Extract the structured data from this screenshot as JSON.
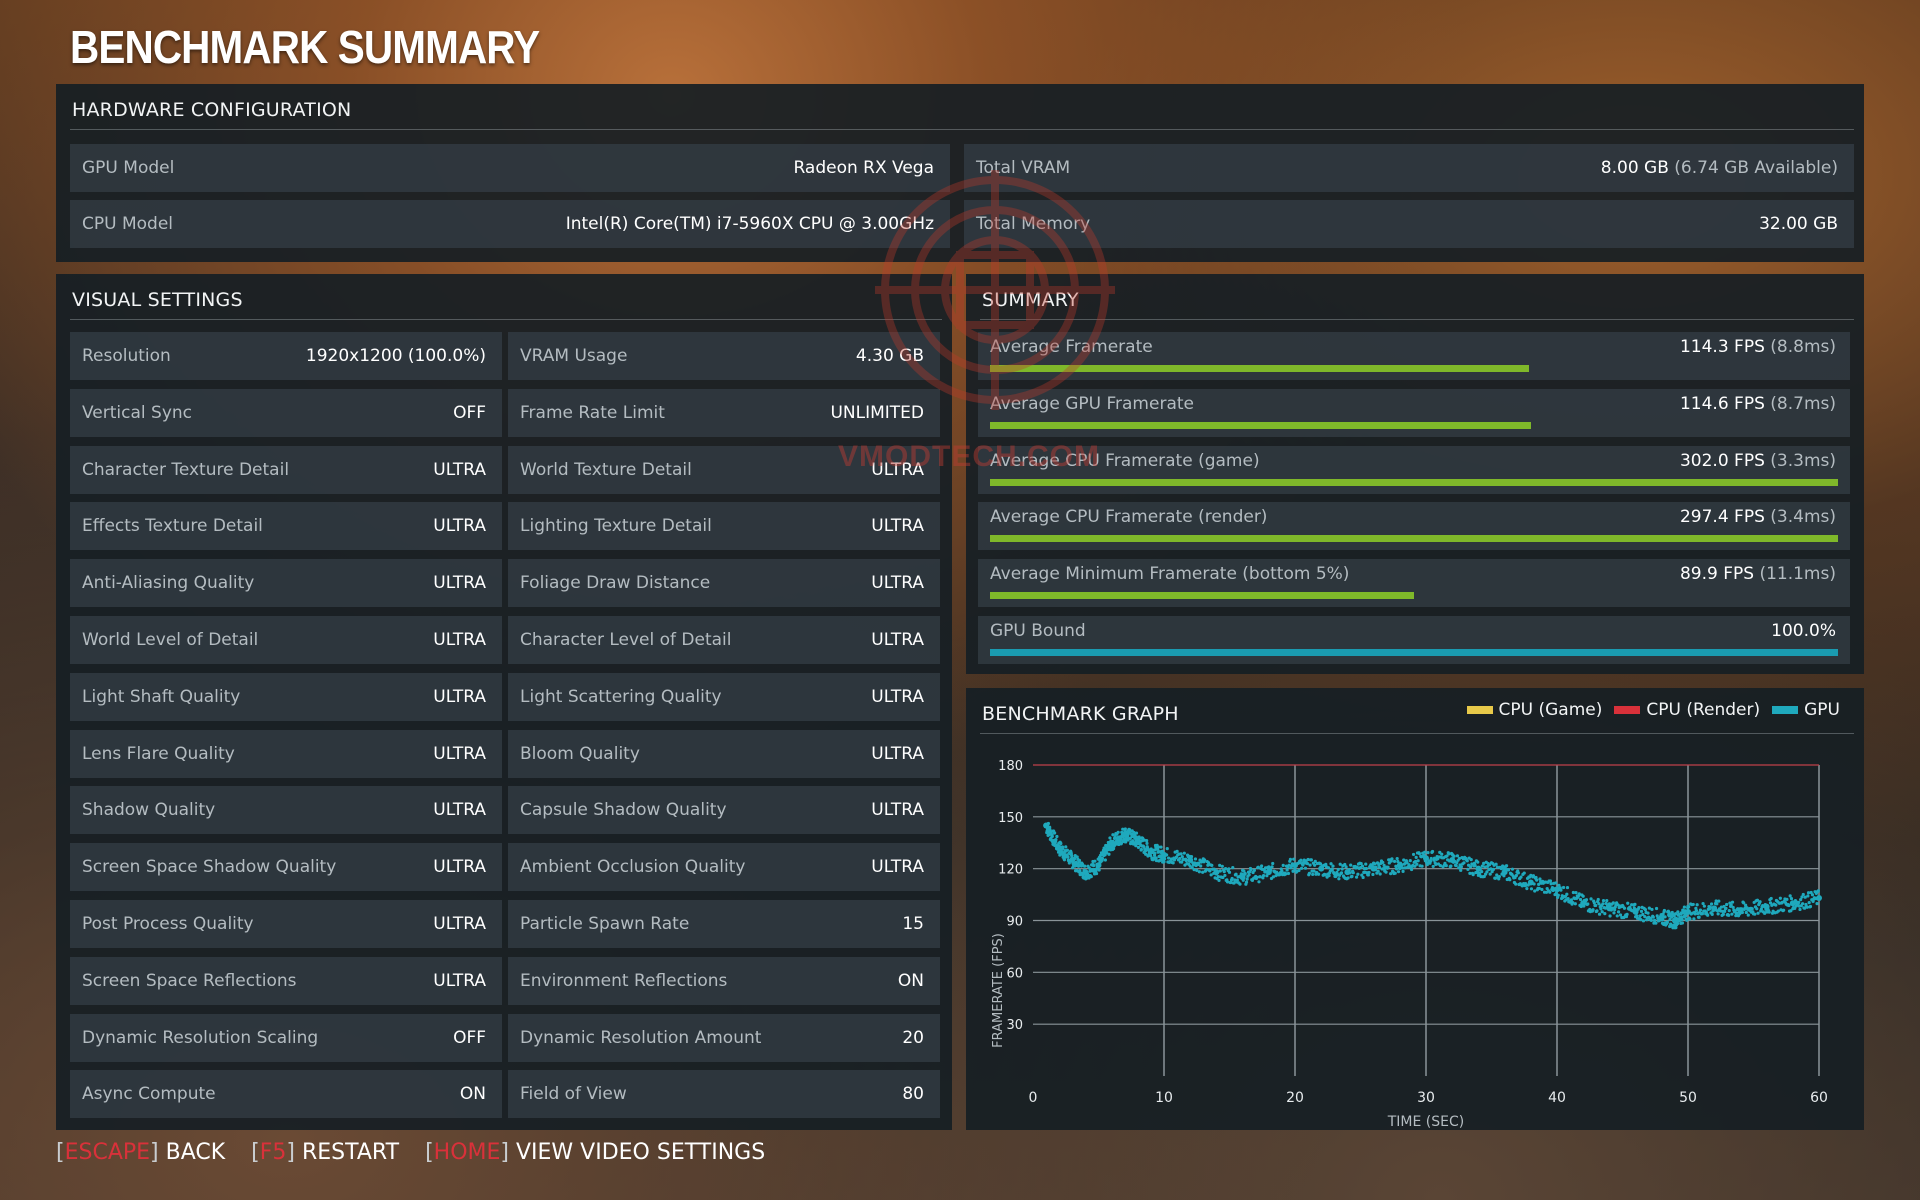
{
  "title": "BENCHMARK SUMMARY",
  "hardware": {
    "heading": "HARDWARE CONFIGURATION",
    "left": [
      {
        "label": "GPU Model",
        "value": "Radeon RX Vega"
      },
      {
        "label": "CPU Model",
        "value": "Intel(R) Core(TM) i7-5960X CPU @ 3.00GHz"
      }
    ],
    "right": [
      {
        "label": "Total VRAM",
        "value": "8.00 GB",
        "sub": "(6.74 GB Available)"
      },
      {
        "label": "Total Memory",
        "value": "32.00 GB",
        "sub": ""
      }
    ]
  },
  "visual": {
    "heading": "VISUAL SETTINGS",
    "left": [
      {
        "label": "Resolution",
        "value": "1920x1200 (100.0%)"
      },
      {
        "label": "Vertical Sync",
        "value": "OFF"
      },
      {
        "label": "Character Texture Detail",
        "value": "ULTRA"
      },
      {
        "label": "Effects Texture Detail",
        "value": "ULTRA"
      },
      {
        "label": "Anti-Aliasing Quality",
        "value": "ULTRA"
      },
      {
        "label": "World Level of Detail",
        "value": "ULTRA"
      },
      {
        "label": "Light Shaft Quality",
        "value": "ULTRA"
      },
      {
        "label": "Lens Flare Quality",
        "value": "ULTRA"
      },
      {
        "label": "Shadow Quality",
        "value": "ULTRA"
      },
      {
        "label": "Screen Space Shadow Quality",
        "value": "ULTRA"
      },
      {
        "label": "Post Process Quality",
        "value": "ULTRA"
      },
      {
        "label": "Screen Space Reflections",
        "value": "ULTRA"
      },
      {
        "label": "Dynamic Resolution Scaling",
        "value": "OFF"
      },
      {
        "label": "Async Compute",
        "value": "ON"
      }
    ],
    "right": [
      {
        "label": "VRAM Usage",
        "value": "4.30 GB"
      },
      {
        "label": "Frame Rate Limit",
        "value": "UNLIMITED"
      },
      {
        "label": "World Texture Detail",
        "value": "ULTRA"
      },
      {
        "label": "Lighting Texture Detail",
        "value": "ULTRA"
      },
      {
        "label": "Foliage Draw Distance",
        "value": "ULTRA"
      },
      {
        "label": "Character Level of Detail",
        "value": "ULTRA"
      },
      {
        "label": "Light Scattering Quality",
        "value": "ULTRA"
      },
      {
        "label": "Bloom Quality",
        "value": "ULTRA"
      },
      {
        "label": "Capsule Shadow Quality",
        "value": "ULTRA"
      },
      {
        "label": "Ambient Occlusion Quality",
        "value": "ULTRA"
      },
      {
        "label": "Particle Spawn Rate",
        "value": "15"
      },
      {
        "label": "Environment Reflections",
        "value": "ON"
      },
      {
        "label": "Dynamic Resolution Amount",
        "value": "20"
      },
      {
        "label": "Field of View",
        "value": "80"
      }
    ]
  },
  "summary": {
    "heading": "SUMMARY",
    "rows": [
      {
        "label": "Average Framerate",
        "value": "114.3 FPS",
        "sub": "(8.8ms)",
        "fill": 0.636,
        "color": "#7fb82a"
      },
      {
        "label": "Average GPU Framerate",
        "value": "114.6 FPS",
        "sub": "(8.7ms)",
        "fill": 0.638,
        "color": "#7fb82a"
      },
      {
        "label": "Average CPU Framerate (game)",
        "value": "302.0 FPS",
        "sub": "(3.3ms)",
        "fill": 1.0,
        "color": "#7fb82a"
      },
      {
        "label": "Average CPU Framerate (render)",
        "value": "297.4 FPS",
        "sub": "(3.4ms)",
        "fill": 1.0,
        "color": "#7fb82a"
      },
      {
        "label": "Average Minimum Framerate (bottom 5%)",
        "value": "89.9 FPS",
        "sub": "(11.1ms)",
        "fill": 0.5,
        "color": "#7fb82a"
      },
      {
        "label": "GPU Bound",
        "value": "100.0%",
        "sub": "",
        "fill": 1.0,
        "color": "#1a9bb0"
      }
    ]
  },
  "graph": {
    "heading": "BENCHMARK GRAPH",
    "legend": [
      {
        "name": "CPU (Game)",
        "color": "#e8c94a"
      },
      {
        "name": "CPU (Render)",
        "color": "#d9313a"
      },
      {
        "name": "GPU",
        "color": "#1fa9bd"
      }
    ]
  },
  "chart_data": {
    "type": "scatter",
    "xlabel": "TIME (SEC)",
    "ylabel": "FRAMERATE (FPS)",
    "xlim": [
      0,
      60
    ],
    "ylim": [
      0,
      180
    ],
    "xticks": [
      "0",
      "10",
      "20",
      "30",
      "40",
      "50",
      "60"
    ],
    "yticks": [
      "30",
      "60",
      "90",
      "120",
      "150",
      "180"
    ],
    "grid": true,
    "series": [
      {
        "name": "GPU",
        "color": "#1fa9bd",
        "x": [
          1,
          2,
          3,
          4,
          5,
          6,
          7,
          8,
          9,
          10,
          12,
          14,
          16,
          18,
          20,
          22,
          24,
          26,
          28,
          30,
          32,
          34,
          36,
          38,
          40,
          42,
          44,
          46,
          48,
          49,
          50,
          52,
          54,
          56,
          58,
          60
        ],
        "y": [
          145,
          132,
          125,
          118,
          122,
          135,
          140,
          136,
          130,
          128,
          125,
          118,
          115,
          118,
          122,
          120,
          118,
          120,
          122,
          126,
          125,
          120,
          118,
          112,
          108,
          100,
          97,
          95,
          92,
          90,
          95,
          97,
          96,
          98,
          100,
          103
        ]
      },
      {
        "name": "CPU (Game)",
        "color": "#e8c94a",
        "x": [],
        "y": []
      },
      {
        "name": "CPU (Render)",
        "color": "#d9313a",
        "x": [],
        "y": []
      }
    ]
  },
  "footer": [
    {
      "key": "ESCAPE",
      "label": "BACK"
    },
    {
      "key": "F5",
      "label": "RESTART"
    },
    {
      "key": "HOME",
      "label": "VIEW VIDEO SETTINGS"
    }
  ],
  "watermark": "VMODTECH.COM"
}
